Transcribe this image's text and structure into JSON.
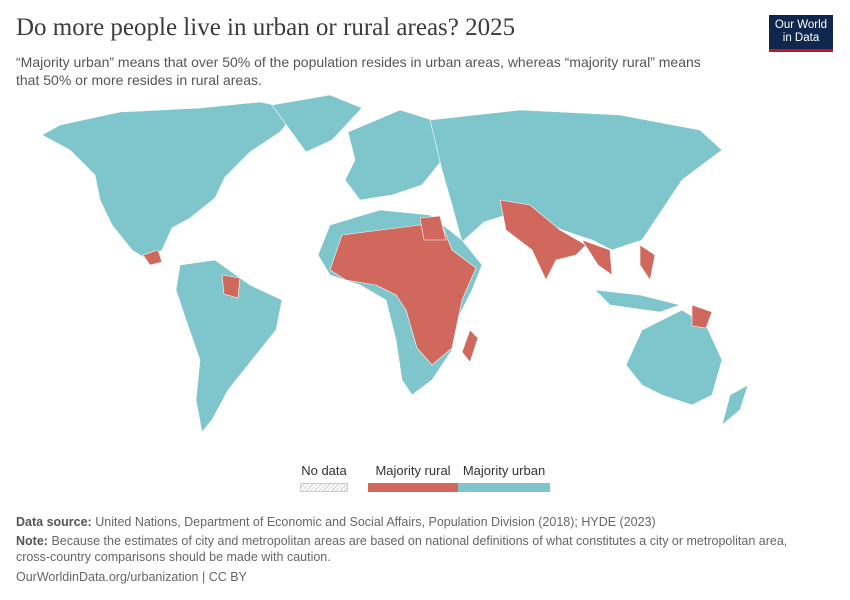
{
  "header": {
    "title": "Do more people live in urban or rural areas? 2025",
    "subtitle": "“Majority urban” means that over 50% of the population resides in urban areas, whereas “majority rural” means that 50% or more resides in rural areas.",
    "logo": [
      "Our World",
      "in Data"
    ]
  },
  "legend": {
    "items": [
      {
        "label": "No data",
        "color": "hatch"
      },
      {
        "label": "Majority rural",
        "color": "#d0685d"
      },
      {
        "label": "Majority urban",
        "color": "#7ec5cc"
      }
    ]
  },
  "footer": {
    "source_label": "Data source:",
    "source_text": "United Nations, Department of Economic and Social Affairs, Population Division (2018); HYDE (2023)",
    "note_label": "Note:",
    "note_text": "Because the estimates of city and metropolitan areas are based on national definitions of what constitutes a city or metropolitan area, cross-country comparisons should be made with caution.",
    "url": "OurWorldinData.org/urbanization | CC BY"
  }
}
